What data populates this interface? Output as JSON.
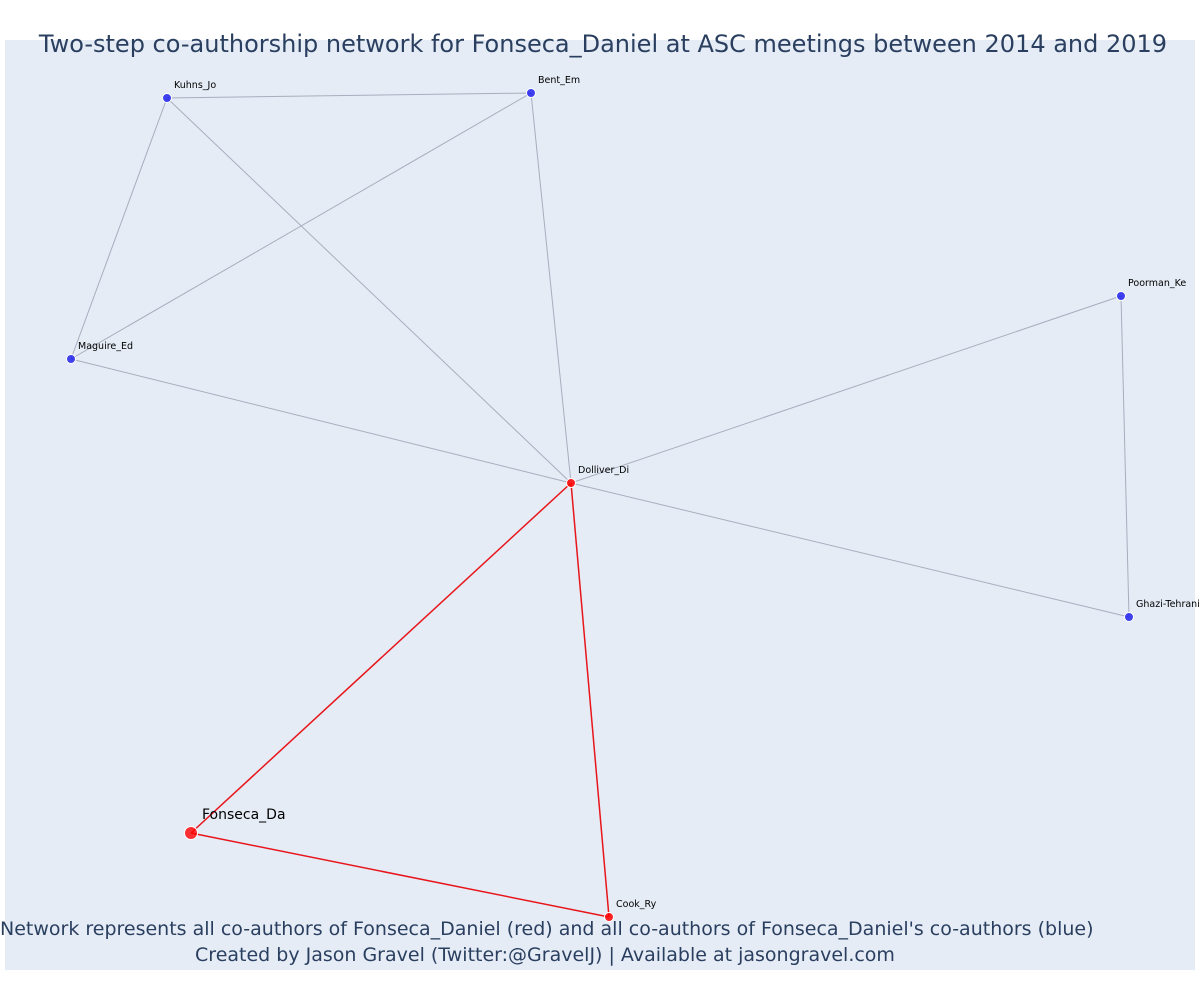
{
  "title": "Two-step co-authorship network for Fonseca_Daniel at ASC meetings between 2014 and 2019",
  "captions": {
    "line1": "Network represents all co-authors of Fonseca_Daniel (red) and all co-authors of Fonseca_Daniel's co-authors (blue)",
    "line2": "Created by Jason Gravel (Twitter:@GravelJ) | Available at jasongravel.com"
  },
  "colors": {
    "background": "#e5ecf6",
    "red_node": "#ff0000",
    "blue_node": "#2222ee",
    "red_edge": "#e8151b",
    "grey_edge": "#a9adbd",
    "text": "#2a3f5f"
  },
  "network": {
    "focal": "Fonseca_Da",
    "nodes": [
      {
        "id": "Fonseca_Da",
        "label": "Fonseca_Da",
        "group": "focal"
      },
      {
        "id": "Dolliver_Di",
        "label": "Dolliver_Di",
        "group": "red"
      },
      {
        "id": "Cook_Ry",
        "label": "Cook_Ry",
        "group": "red"
      },
      {
        "id": "Kuhns_Jo",
        "label": "Kuhns_Jo",
        "group": "blue"
      },
      {
        "id": "Bent_Em",
        "label": "Bent_Em",
        "group": "blue"
      },
      {
        "id": "Maguire_Ed",
        "label": "Maguire_Ed",
        "group": "blue"
      },
      {
        "id": "Poorman_Ke",
        "label": "Poorman_Ke",
        "group": "blue"
      },
      {
        "id": "Ghazi-Tehrani",
        "label": "Ghazi-Tehrani",
        "group": "blue"
      }
    ],
    "edges": [
      {
        "source": "Fonseca_Da",
        "target": "Dolliver_Di",
        "type": "red"
      },
      {
        "source": "Fonseca_Da",
        "target": "Cook_Ry",
        "type": "red"
      },
      {
        "source": "Dolliver_Di",
        "target": "Cook_Ry",
        "type": "red"
      },
      {
        "source": "Dolliver_Di",
        "target": "Kuhns_Jo",
        "type": "grey"
      },
      {
        "source": "Dolliver_Di",
        "target": "Bent_Em",
        "type": "grey"
      },
      {
        "source": "Dolliver_Di",
        "target": "Maguire_Ed",
        "type": "grey"
      },
      {
        "source": "Dolliver_Di",
        "target": "Poorman_Ke",
        "type": "grey"
      },
      {
        "source": "Dolliver_Di",
        "target": "Ghazi-Tehrani",
        "type": "grey"
      },
      {
        "source": "Kuhns_Jo",
        "target": "Bent_Em",
        "type": "grey"
      },
      {
        "source": "Kuhns_Jo",
        "target": "Maguire_Ed",
        "type": "grey"
      },
      {
        "source": "Bent_Em",
        "target": "Maguire_Ed",
        "type": "grey"
      },
      {
        "source": "Poorman_Ke",
        "target": "Ghazi-Tehrani",
        "type": "grey"
      }
    ]
  }
}
